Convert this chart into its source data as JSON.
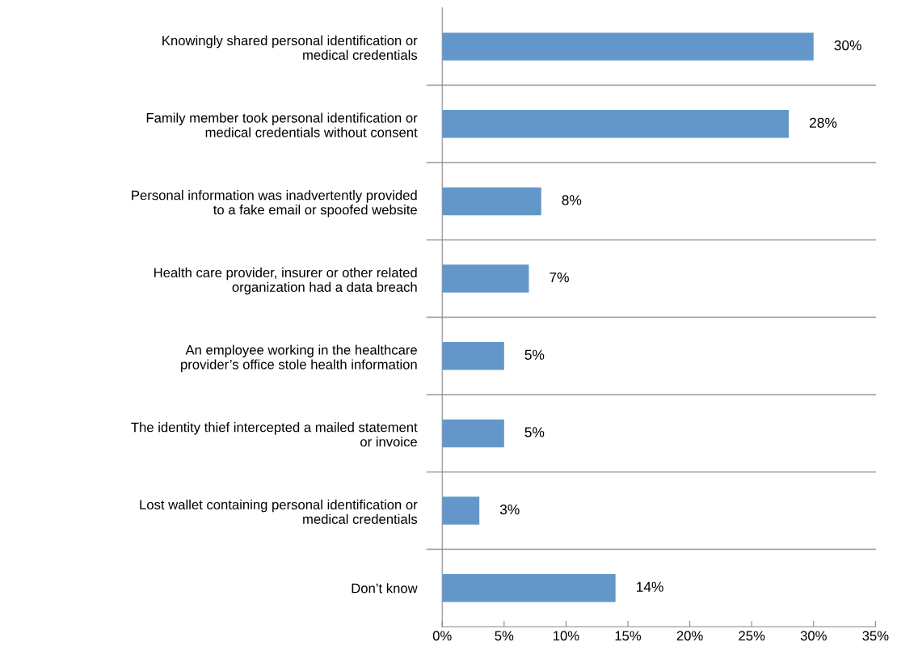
{
  "chart_data": {
    "type": "bar",
    "orientation": "horizontal",
    "categories": [
      "Knowingly shared personal identification or\nmedical credentials",
      "Family member took personal identification or\nmedical credentials without consent",
      "Personal information was inadvertently provided\nto a fake email or spoofed website",
      "Health care provider, insurer or other related\norganization had a data breach",
      "An employee working in the healthcare\nprovider’s office stole health information",
      "The identity thief intercepted a mailed statement\nor invoice",
      "Lost wallet containing personal identification or\nmedical credentials",
      "Don’t know"
    ],
    "values": [
      30,
      28,
      8,
      7,
      5,
      5,
      3,
      14
    ],
    "value_labels": [
      "30%",
      "28%",
      "8%",
      "7%",
      "5%",
      "5%",
      "3%",
      "14%"
    ],
    "color": "#6497c9",
    "xlim": [
      0,
      35
    ],
    "xticks": [
      {
        "value": 0,
        "label": "0%"
      },
      {
        "value": 5,
        "label": "5%"
      },
      {
        "value": 10,
        "label": "10%"
      },
      {
        "value": 15,
        "label": "15%"
      },
      {
        "value": 20,
        "label": "20%"
      },
      {
        "value": 25,
        "label": "25%"
      },
      {
        "value": 30,
        "label": "30%"
      },
      {
        "value": 35,
        "label": "35%"
      }
    ],
    "grid": "y",
    "legend": false
  }
}
